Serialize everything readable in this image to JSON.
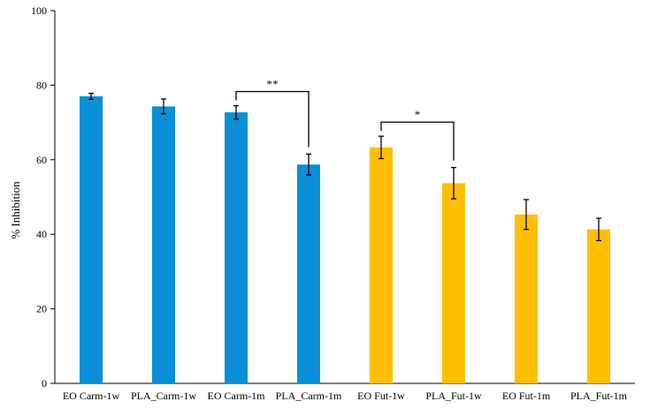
{
  "chart_data": {
    "type": "bar",
    "title": "",
    "xlabel": "",
    "ylabel": "% Inhibition",
    "ylim": [
      0,
      100
    ],
    "yticks": [
      0,
      20,
      40,
      60,
      80,
      100
    ],
    "grid": false,
    "legend": "none",
    "categories": [
      "EO Carm-1w",
      "PLA_Carm-1w",
      "EO Carm-1m",
      "PLA_Carm-1m",
      "EO Fut-1w",
      "PLA_Fut-1w",
      "EO Fut-1m",
      "PLA_Fut-1m"
    ],
    "values": [
      77.0,
      74.3,
      72.7,
      58.7,
      63.3,
      53.7,
      45.3,
      41.3
    ],
    "errors": [
      0.8,
      2.0,
      1.8,
      2.8,
      3.0,
      4.2,
      4.0,
      3.0
    ],
    "bar_colors": [
      "#0A8FD6",
      "#0A8FD6",
      "#0A8FD6",
      "#0A8FD6",
      "#FFBF00",
      "#FFBF00",
      "#FFBF00",
      "#FFBF00"
    ],
    "significance": [
      {
        "from": 2,
        "to": 3,
        "label": "**"
      },
      {
        "from": 4,
        "to": 5,
        "label": "*"
      }
    ]
  }
}
